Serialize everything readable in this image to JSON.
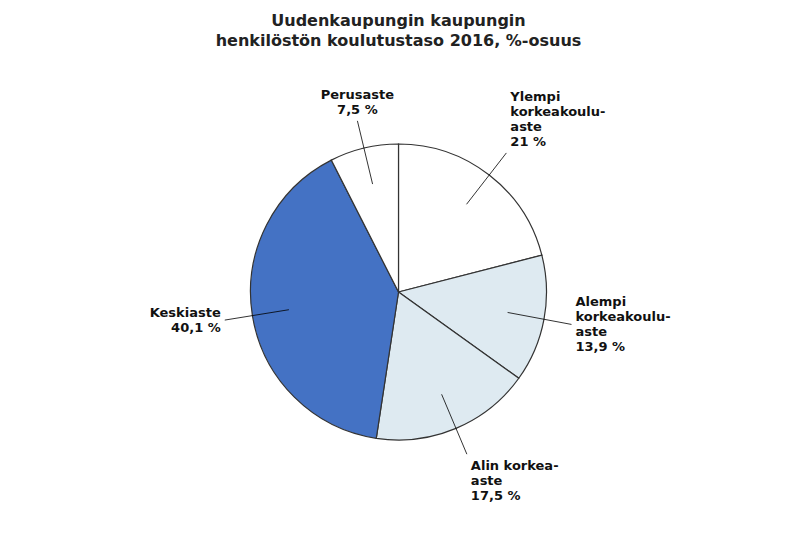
{
  "chart_data": {
    "type": "pie",
    "title": "Uudenkaupungin kaupungin\nhenkilöstön koulutustaso 2016, %-osuus",
    "categories": [
      "Ylempi\nkorkeakoulu-\naste",
      "Alempi\nkorkeakoulu-\naste",
      "Alin korkea-\naste",
      "Keskiaste",
      "Perusaste"
    ],
    "values": [
      21.0,
      13.9,
      17.5,
      40.1,
      7.5
    ],
    "value_labels": [
      "21 %",
      "13,9 %",
      "17,5 %",
      "40,1 %",
      "7,5 %"
    ],
    "colors": [
      "#ffffff",
      "#deeaf1",
      "#deeaf1",
      "#4472c4",
      "#ffffff"
    ],
    "data_labels": true
  }
}
